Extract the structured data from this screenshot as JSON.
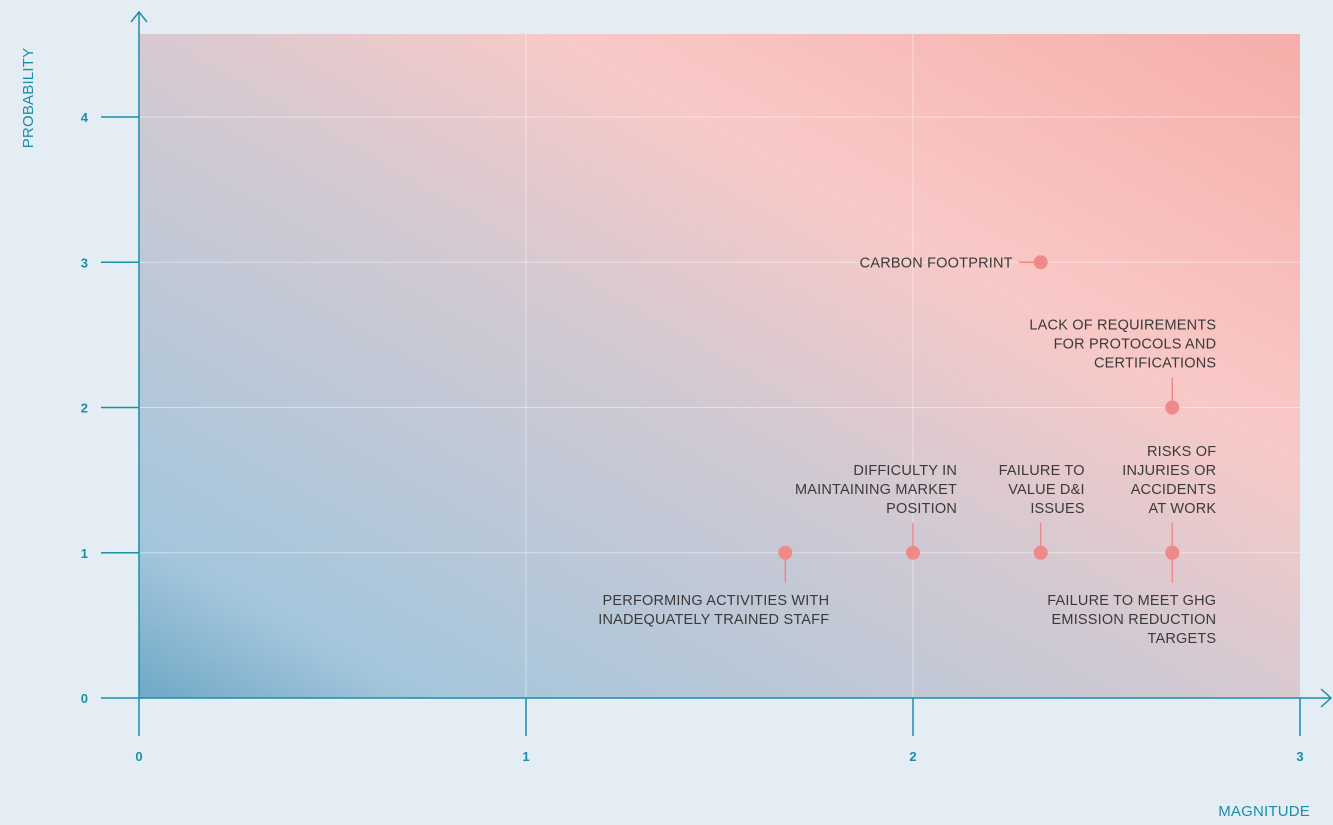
{
  "chart_data": {
    "type": "scatter",
    "title": "",
    "xlabel": "MAGNITUDE",
    "ylabel": "PROBABILITY",
    "xlim": [
      0,
      3
    ],
    "ylim": [
      0,
      4
    ],
    "x_ticks": [
      "0",
      "1",
      "2",
      "3"
    ],
    "y_ticks": [
      "0",
      "1",
      "2",
      "3",
      "4"
    ],
    "grid": true,
    "colors": {
      "axis": "#1a8fa8",
      "point": "#ef8a8a",
      "background_low": "#6fa8c6",
      "background_mid": "#f8c9c7",
      "background_high": "#f6aeaa",
      "label_text": "#3a3a3a"
    },
    "points": [
      {
        "x": 1.67,
        "y": 1,
        "label": [
          "PERFORMING ACTIVITIES WITH",
          "INADEQUATELY TRAINED STAFF"
        ],
        "label_position": "below"
      },
      {
        "x": 2.0,
        "y": 1,
        "label": [
          "DIFFICULTY IN",
          "MAINTAINING MARKET",
          "POSITION"
        ],
        "label_position": "above-left"
      },
      {
        "x": 2.33,
        "y": 1,
        "label": [
          "FAILURE TO",
          "VALUE D&I",
          "ISSUES"
        ],
        "label_position": "above"
      },
      {
        "x": 2.67,
        "y": 1,
        "label": [
          "RISKS OF",
          "INJURIES OR",
          "ACCIDENTS",
          "AT WORK"
        ],
        "label_position": "above"
      },
      {
        "x": 2.67,
        "y": 1,
        "label": [
          "FAILURE TO MEET GHG",
          "EMISSION REDUCTION",
          "TARGETS"
        ],
        "label_position": "below"
      },
      {
        "x": 2.33,
        "y": 3,
        "label": [
          "CARBON FOOTPRINT"
        ],
        "label_position": "left"
      },
      {
        "x": 2.67,
        "y": 2,
        "label": [
          "LACK OF REQUIREMENTS",
          "FOR PROTOCOLS AND",
          "CERTIFICATIONS"
        ],
        "label_position": "above"
      }
    ]
  }
}
